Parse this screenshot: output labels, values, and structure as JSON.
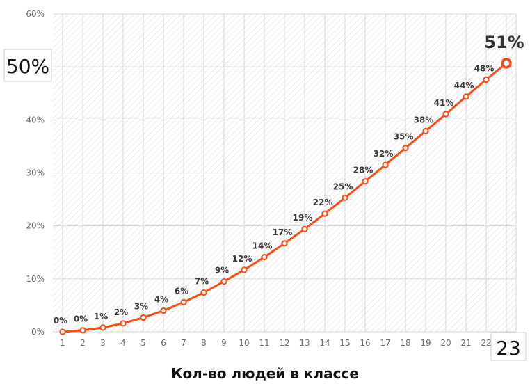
{
  "chart_data": {
    "type": "line",
    "x": [
      1,
      2,
      3,
      4,
      5,
      6,
      7,
      8,
      9,
      10,
      11,
      12,
      13,
      14,
      15,
      16,
      17,
      18,
      19,
      20,
      21,
      22,
      23
    ],
    "values": [
      0.0,
      0.3,
      0.8,
      1.6,
      2.7,
      4.0,
      5.6,
      7.4,
      9.5,
      11.7,
      14.1,
      16.7,
      19.4,
      22.3,
      25.3,
      28.4,
      31.5,
      34.7,
      37.9,
      41.1,
      44.4,
      47.6,
      50.7
    ],
    "data_labels": [
      "0%",
      "0%",
      "1%",
      "2%",
      "3%",
      "4%",
      "6%",
      "7%",
      "9%",
      "12%",
      "14%",
      "17%",
      "19%",
      "22%",
      "25%",
      "28%",
      "32%",
      "35%",
      "38%",
      "41%",
      "44%",
      "48%",
      "51%"
    ],
    "x_tick_labels": [
      "1",
      "2",
      "3",
      "4",
      "5",
      "6",
      "7",
      "8",
      "9",
      "10",
      "11",
      "12",
      "13",
      "14",
      "15",
      "16",
      "17",
      "18",
      "19",
      "20",
      "21",
      "22"
    ],
    "y_tick_labels": [
      "0%",
      "10%",
      "20%",
      "30%",
      "40%",
      "60%"
    ],
    "y_ticks": [
      0,
      10,
      20,
      30,
      40,
      60
    ],
    "ylim": [
      0,
      60
    ],
    "xlabel": "Кол-во людей в классе",
    "highlight_y_label": "50%",
    "highlight_x_label": "23",
    "grid": true,
    "colors": {
      "line": "#ff4a12",
      "grid": "#d9d9d9",
      "hatch": "#dcdcdc"
    }
  }
}
